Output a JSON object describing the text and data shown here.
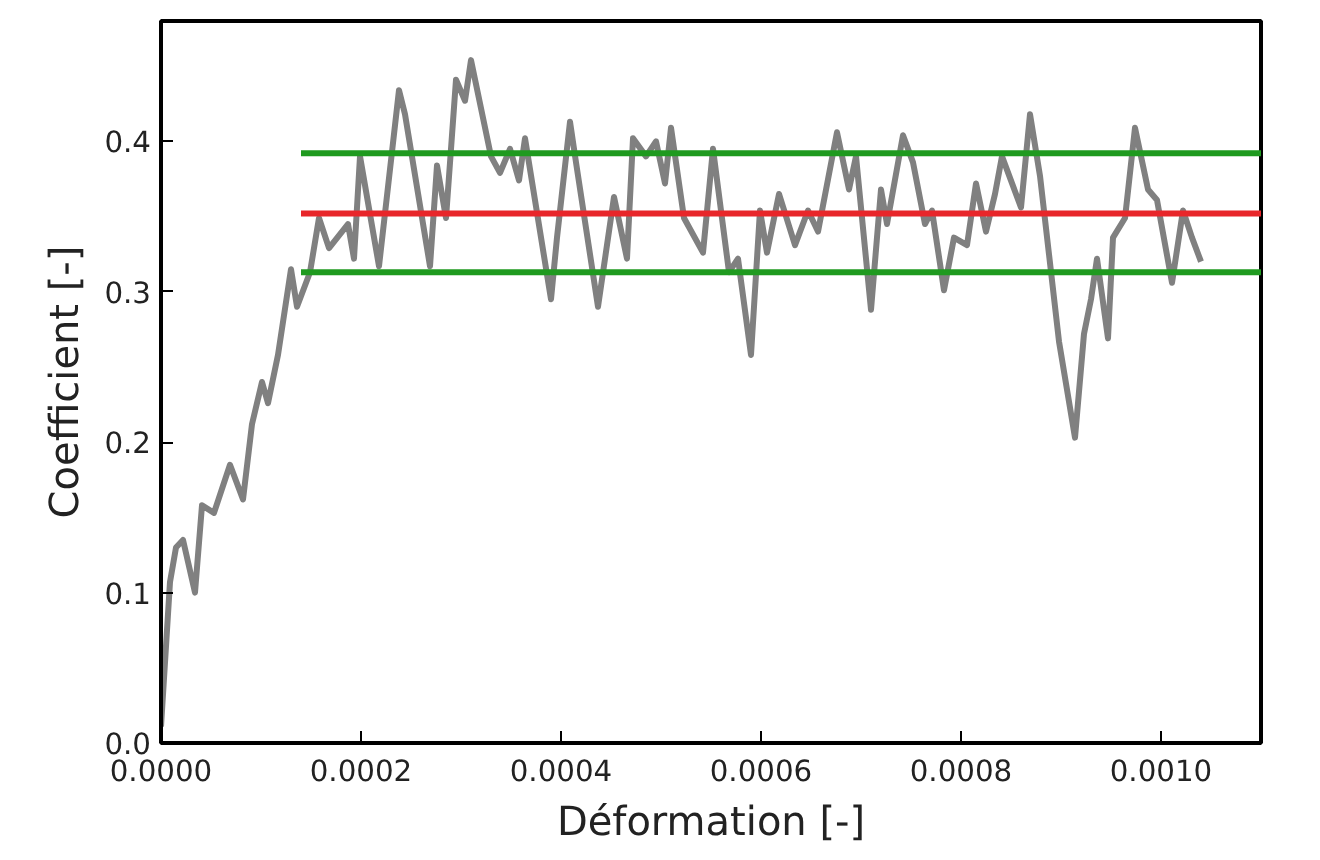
{
  "chart_data": {
    "type": "line",
    "xlabel": "Déformation [-]",
    "ylabel": "Coefficient [-]",
    "xlim": [
      0,
      0.0011
    ],
    "ylim": [
      0,
      0.48
    ],
    "xticks": [
      {
        "value": 0,
        "label": "0.0000"
      },
      {
        "value": 0.0002,
        "label": "0.0002"
      },
      {
        "value": 0.0004,
        "label": "0.0004"
      },
      {
        "value": 0.0006,
        "label": "0.0006"
      },
      {
        "value": 0.0008,
        "label": "0.0008"
      },
      {
        "value": 0.001,
        "label": "0.0010"
      }
    ],
    "yticks": [
      {
        "value": 0,
        "label": "0.0"
      },
      {
        "value": 0.1,
        "label": "0.1"
      },
      {
        "value": 0.2,
        "label": "0.2"
      },
      {
        "value": 0.3,
        "label": "0.3"
      },
      {
        "value": 0.4,
        "label": "0.4"
      }
    ],
    "grid": false,
    "marker": "none",
    "line_style": "solid",
    "series": [
      {
        "color": "#808080",
        "x": [
          0,
          9e-06,
          1.5e-05,
          2.2e-05,
          3.4e-05,
          4.1e-05,
          5.3e-05,
          6.9e-05,
          8.2e-05,
          9.1e-05,
          0.000101,
          0.000107,
          0.000117,
          0.00013,
          0.000136,
          0.000149,
          0.000158,
          0.000168,
          0.000187,
          0.000193,
          0.000199,
          0.000218,
          0.000238,
          0.000244,
          0.000269,
          0.000276,
          0.000285,
          0.000295,
          0.000304,
          0.00031,
          0.00033,
          0.000339,
          0.000349,
          0.000358,
          0.000364,
          0.00039,
          0.000396,
          0.000409,
          0.000415,
          0.000437,
          0.000453,
          0.000466,
          0.000472,
          0.000485,
          0.000495,
          0.000504,
          0.00051,
          0.000523,
          0.000542,
          0.000552,
          0.000568,
          0.000577,
          0.00059,
          0.000599,
          0.000606,
          0.000618,
          0.000634,
          0.000647,
          0.000657,
          0.000676,
          0.000688,
          0.000695,
          0.00071,
          0.00072,
          0.000726,
          0.000742,
          0.000752,
          0.000764,
          0.000771,
          0.000783,
          0.000793,
          0.000806,
          0.000815,
          0.000825,
          0.000834,
          0.000841,
          0.00086,
          0.000869,
          0.000879,
          0.000898,
          0.000914,
          0.000923,
          0.00093,
          0.000936,
          0.000947,
          0.000952,
          0.000964,
          0.000974,
          0.000987,
          0.000996,
          0.001011,
          0.001022,
          0.001031,
          0.00104
        ],
        "values": [
          0.011,
          0.107,
          0.13,
          0.135,
          0.1,
          0.158,
          0.153,
          0.185,
          0.162,
          0.212,
          0.24,
          0.226,
          0.258,
          0.315,
          0.29,
          0.313,
          0.349,
          0.329,
          0.345,
          0.322,
          0.39,
          0.317,
          0.434,
          0.418,
          0.317,
          0.384,
          0.349,
          0.441,
          0.427,
          0.454,
          0.39,
          0.379,
          0.395,
          0.374,
          0.402,
          0.295,
          0.336,
          0.413,
          0.386,
          0.29,
          0.363,
          0.322,
          0.402,
          0.39,
          0.4,
          0.372,
          0.409,
          0.349,
          0.326,
          0.395,
          0.313,
          0.322,
          0.258,
          0.354,
          0.326,
          0.365,
          0.331,
          0.354,
          0.34,
          0.406,
          0.368,
          0.39,
          0.288,
          0.368,
          0.345,
          0.404,
          0.386,
          0.345,
          0.354,
          0.301,
          0.336,
          0.331,
          0.372,
          0.34,
          0.365,
          0.39,
          0.356,
          0.418,
          0.377,
          0.267,
          0.203,
          0.272,
          0.295,
          0.322,
          0.269,
          0.336,
          0.349,
          0.409,
          0.368,
          0.361,
          0.306,
          0.354,
          0.336,
          0.32
        ]
      },
      {
        "color": "#1f9a1f",
        "x": [
          0.00014,
          0.0011
        ],
        "values": [
          0.392,
          0.392
        ]
      },
      {
        "color": "#e8262a",
        "x": [
          0.00014,
          0.0011
        ],
        "values": [
          0.352,
          0.352
        ]
      },
      {
        "color": "#1f9a1f",
        "x": [
          0.00014,
          0.0011
        ],
        "values": [
          0.313,
          0.313
        ]
      }
    ]
  }
}
